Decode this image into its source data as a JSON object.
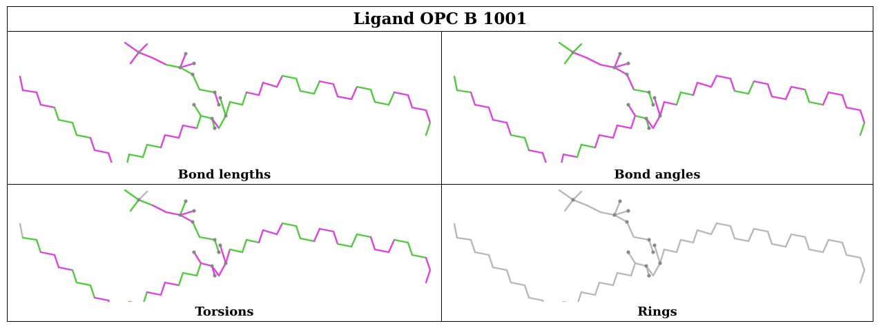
{
  "title": "Ligand OPC B 1001",
  "panels": [
    {
      "caption": "Bond lengths",
      "key": "bond-lengths"
    },
    {
      "caption": "Bond angles",
      "key": "bond-angles"
    },
    {
      "caption": "Torsions",
      "key": "torsions"
    },
    {
      "caption": "Rings",
      "key": "rings"
    }
  ],
  "colors": {
    "green": "#4dcc3a",
    "magenta": "#e040e0",
    "gray": "#b8b8b8",
    "atom": "#888888"
  }
}
